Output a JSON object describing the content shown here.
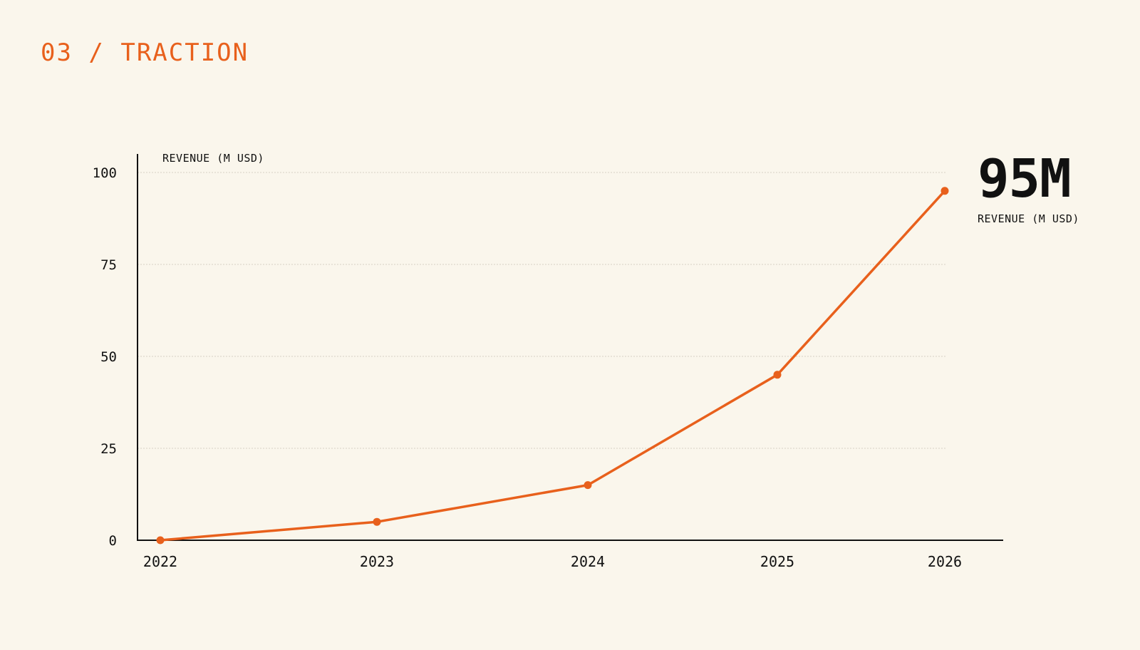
{
  "header": {
    "section_title": "03 / TRACTION"
  },
  "kpi": {
    "value": "95M",
    "label": "REVENUE (M USD)"
  },
  "colors": {
    "accent": "#e8601c",
    "background": "#faf6ec",
    "axis": "#111111",
    "grid": "#c9c4b8"
  },
  "chart_data": {
    "type": "line",
    "x": [
      "2022",
      "2023",
      "2024",
      "2025",
      "2026"
    ],
    "series": [
      {
        "values": [
          0,
          5,
          15,
          45,
          95
        ]
      }
    ],
    "ylabel": "REVENUE (M USD)",
    "ylim": [
      0,
      100
    ],
    "yticks": [
      "0",
      "25",
      "50",
      "75",
      "100"
    ],
    "grid": true
  }
}
